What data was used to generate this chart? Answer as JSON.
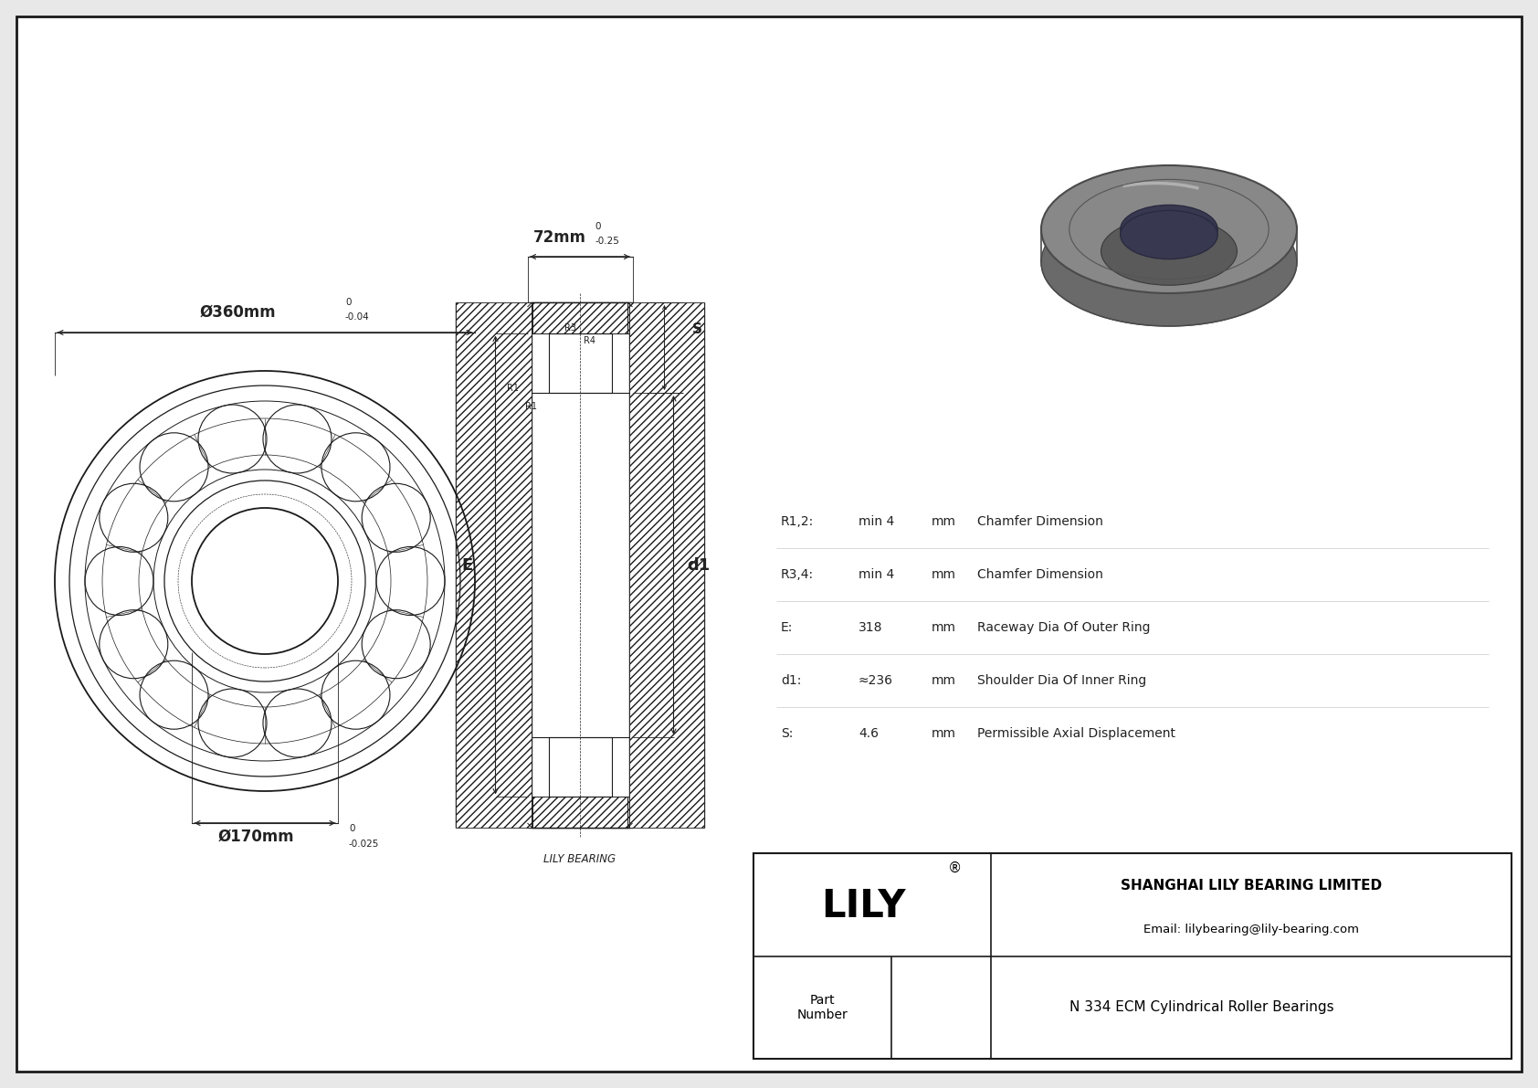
{
  "bg_color": "#e8e8e8",
  "drawing_bg": "#ffffff",
  "line_color": "#1a1a1a",
  "dim_color": "#222222",
  "title": "N 334 ECM Cylindrical Roller Bearings",
  "company": "SHANGHAI LILY BEARING LIMITED",
  "email": "Email: lilybearing@lily-bearing.com",
  "logo": "LILY",
  "logo_sup": "®",
  "part_label": "Part\nNumber",
  "outer_dim_label": "Ø360mm",
  "outer_dim_tol_upper": "0",
  "outer_dim_tol_lower": "-0.04",
  "inner_dim_label": "Ø170mm",
  "inner_dim_tol_upper": "0",
  "inner_dim_tol_lower": "-0.025",
  "width_dim_label": "72mm",
  "width_dim_tol_upper": "0",
  "width_dim_tol_lower": "-0.25",
  "params": [
    {
      "symbol": "R1,2:",
      "value": "min 4",
      "unit": "mm",
      "desc": "Chamfer Dimension"
    },
    {
      "symbol": "R3,4:",
      "value": "min 4",
      "unit": "mm",
      "desc": "Chamfer Dimension"
    },
    {
      "symbol": "E:",
      "value": "318",
      "unit": "mm",
      "desc": "Raceway Dia Of Outer Ring"
    },
    {
      "symbol": "d1:",
      "value": "≈236",
      "unit": "mm",
      "desc": "Shoulder Dia Of Inner Ring"
    },
    {
      "symbol": "S:",
      "value": "4.6",
      "unit": "mm",
      "desc": "Permissible Axial Displacement"
    }
  ],
  "lily_bearing_label": "LILY BEARING",
  "E_label": "E",
  "d1_label": "d1",
  "S_label": "S",
  "R3_label": "R3",
  "R4_label": "R4",
  "R1a_label": "R1",
  "R1b_label": "R1"
}
